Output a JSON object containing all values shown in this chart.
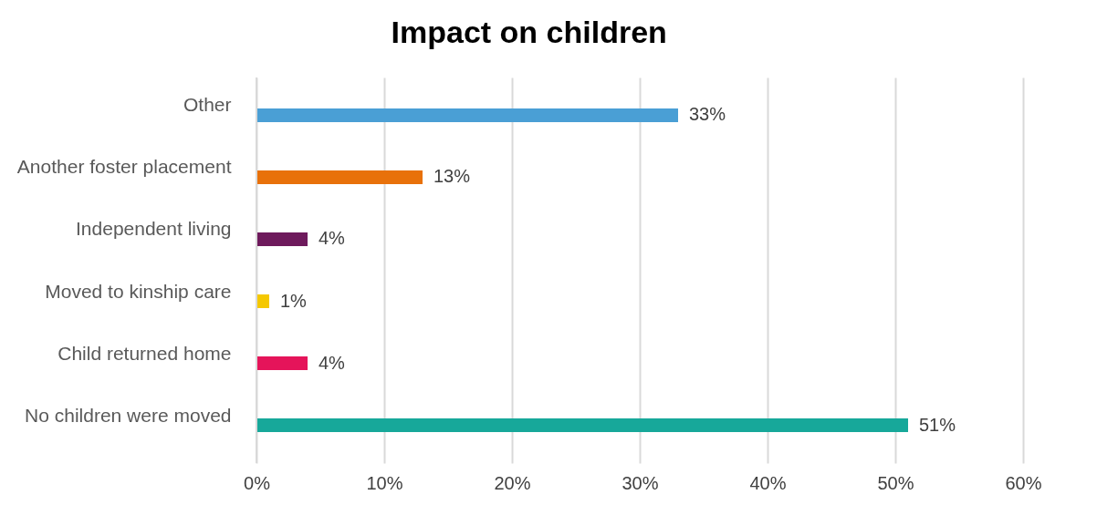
{
  "chart_data": {
    "type": "bar",
    "orientation": "horizontal",
    "title": "Impact on children",
    "categories": [
      "Other",
      "Another foster placement",
      "Independent living",
      "Moved to kinship care",
      "Child returned home",
      "No children were moved"
    ],
    "values": [
      33,
      13,
      4,
      1,
      4,
      51
    ],
    "colors": [
      "#4a9fd5",
      "#e8710a",
      "#6e1a5c",
      "#f5c800",
      "#e5145a",
      "#17a89a"
    ],
    "value_labels": [
      "33%",
      "13%",
      "4%",
      "1%",
      "4%",
      "51%"
    ],
    "xlim": [
      0,
      60
    ],
    "xticks": [
      {
        "value": 0,
        "label": "0%"
      },
      {
        "value": 10,
        "label": "10%"
      },
      {
        "value": 20,
        "label": "20%"
      },
      {
        "value": 30,
        "label": "30%"
      },
      {
        "value": 40,
        "label": "40%"
      },
      {
        "value": 50,
        "label": "50%"
      },
      {
        "value": 60,
        "label": "60%"
      }
    ],
    "grid": "x"
  }
}
